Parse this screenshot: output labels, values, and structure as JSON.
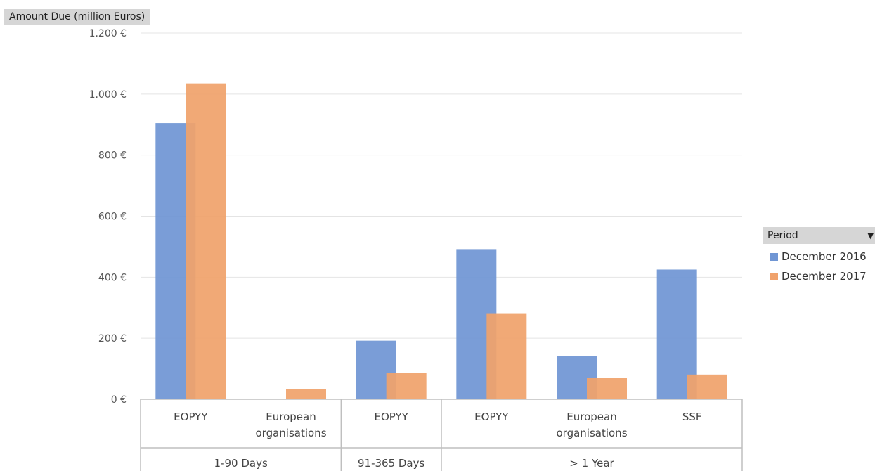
{
  "field_button": "Amount Due (million Euros)",
  "legend": {
    "title": "Period",
    "items": [
      {
        "label": "December 2016",
        "color": "#7096d4"
      },
      {
        "label": "December 2017",
        "color": "#f0a26c"
      }
    ]
  },
  "chart_data": {
    "type": "bar",
    "ylim": [
      0,
      1200
    ],
    "y_ticks": [
      0,
      200,
      400,
      600,
      800,
      1000,
      1200
    ],
    "y_tick_labels": [
      "0 €",
      "200 €",
      "400 €",
      "600 €",
      "800 €",
      "1.000 €",
      "1.200 €"
    ],
    "categories": [
      {
        "label": [
          "EOPYY"
        ],
        "group": "1-90 Days"
      },
      {
        "label": [
          "European",
          "organisations"
        ],
        "group": "1-90 Days"
      },
      {
        "label": [
          "EOPYY"
        ],
        "group": "91-365 Days"
      },
      {
        "label": [
          "EOPYY"
        ],
        "group": "> 1 Year"
      },
      {
        "label": [
          "European",
          "organisations"
        ],
        "group": "> 1 Year"
      },
      {
        "label": [
          "SSF"
        ],
        "group": "> 1 Year"
      }
    ],
    "groups": [
      {
        "label": "1-90 Days",
        "count": 2
      },
      {
        "label": "91-365 Days",
        "count": 1
      },
      {
        "label": "> 1 Year",
        "count": 3
      }
    ],
    "series": [
      {
        "name": "December 2016",
        "color": "#7096d4",
        "values": [
          905,
          0,
          192,
          492,
          141,
          425
        ]
      },
      {
        "name": "December 2017",
        "color": "#f0a26c",
        "values": [
          1035,
          33,
          87,
          282,
          71,
          81
        ]
      }
    ],
    "grid": true,
    "legend_position": "right"
  }
}
